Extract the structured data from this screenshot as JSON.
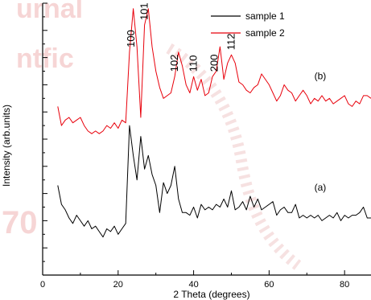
{
  "chart_data": {
    "type": "line",
    "xlabel": "2 Theta (degrees)",
    "ylabel": "Intensity (arb.units)",
    "xlim": [
      0,
      87
    ],
    "ylim": [
      0,
      100
    ],
    "xticks": [
      0,
      20,
      40,
      60,
      80
    ],
    "y_tick_labels_shown": false,
    "legend_position": "top-right",
    "series": [
      {
        "name": "sample 1",
        "color": "#000000",
        "label": "(a)",
        "x": [
          4,
          5,
          6,
          7,
          8,
          9,
          10,
          11,
          12,
          13,
          14,
          15,
          16,
          17,
          18,
          19,
          20,
          21,
          22,
          23,
          24,
          25,
          26,
          27,
          28,
          29,
          30,
          31,
          32,
          33,
          34,
          35,
          36,
          37,
          38,
          39,
          40,
          41,
          42,
          43,
          44,
          45,
          46,
          47,
          48,
          49,
          50,
          51,
          52,
          53,
          54,
          55,
          56,
          57,
          58,
          59,
          60,
          61,
          62,
          63,
          64,
          65,
          66,
          67,
          68,
          69,
          70,
          71,
          72,
          73,
          74,
          75,
          76,
          77,
          78,
          79,
          80,
          81,
          82,
          83,
          84,
          85,
          86,
          87
        ],
        "values": [
          33,
          26,
          24,
          21,
          19,
          22,
          20,
          18,
          20,
          17,
          18,
          16,
          14,
          17,
          16,
          18,
          15,
          17,
          19,
          55,
          44,
          35,
          51,
          39,
          44,
          37,
          33,
          23,
          34,
          30,
          33,
          40,
          28,
          23,
          23,
          22,
          25,
          21,
          26,
          24,
          25,
          24,
          26,
          25,
          28,
          25,
          31,
          24,
          25,
          27,
          24,
          29,
          25,
          28,
          24,
          25,
          26,
          27,
          22,
          24,
          25,
          23,
          23,
          26,
          21,
          22,
          21,
          22,
          21,
          22,
          20,
          21,
          22,
          21,
          23,
          20,
          22,
          21,
          22,
          22,
          23,
          25,
          21,
          21
        ]
      },
      {
        "name": "sample 2",
        "color": "#e8000b",
        "label": "(b)",
        "x": [
          4,
          5,
          6,
          7,
          8,
          9,
          10,
          11,
          12,
          13,
          14,
          15,
          16,
          17,
          18,
          19,
          20,
          21,
          22,
          23,
          24,
          25,
          26,
          27,
          28,
          29,
          30,
          31,
          32,
          33,
          34,
          35,
          36,
          37,
          38,
          39,
          40,
          41,
          42,
          43,
          44,
          45,
          46,
          47,
          48,
          49,
          50,
          51,
          52,
          53,
          54,
          55,
          56,
          57,
          58,
          59,
          60,
          61,
          62,
          63,
          64,
          65,
          66,
          67,
          68,
          69,
          70,
          71,
          72,
          73,
          74,
          75,
          76,
          77,
          78,
          79,
          80,
          81,
          82,
          83,
          84,
          85,
          86,
          87
        ],
        "values": [
          62,
          55,
          57,
          58,
          56,
          57,
          58,
          55,
          53,
          52,
          53,
          52,
          53,
          55,
          54,
          56,
          54,
          57,
          56,
          82,
          98,
          84,
          58,
          92,
          98,
          84,
          75,
          69,
          65,
          66,
          67,
          73,
          82,
          77,
          70,
          67,
          73,
          68,
          72,
          66,
          67,
          73,
          75,
          84,
          72,
          78,
          81,
          78,
          71,
          70,
          68,
          67,
          69,
          70,
          74,
          72,
          70,
          67,
          64,
          66,
          70,
          68,
          67,
          64,
          66,
          68,
          66,
          63,
          65,
          64,
          66,
          64,
          65,
          63,
          64,
          65,
          66,
          63,
          62,
          64,
          63,
          66,
          66,
          65
        ]
      }
    ],
    "peak_labels": [
      {
        "text": "100",
        "x": 23.5
      },
      {
        "text": "101",
        "x": 27
      },
      {
        "text": "102",
        "x": 35
      },
      {
        "text": "110",
        "x": 40
      },
      {
        "text": "200",
        "x": 45.5
      },
      {
        "text": "112",
        "x": 50
      }
    ],
    "curve_labels": [
      {
        "text": "(b)",
        "x": 72,
        "y": 72
      },
      {
        "text": "(a)",
        "x": 72,
        "y": 31
      }
    ]
  },
  "watermark": [
    "urnal",
    "ntfic",
    "70"
  ],
  "colors": {
    "sample1": "#000000",
    "sample2": "#e8000b",
    "watermark": "#f0b4b4"
  }
}
